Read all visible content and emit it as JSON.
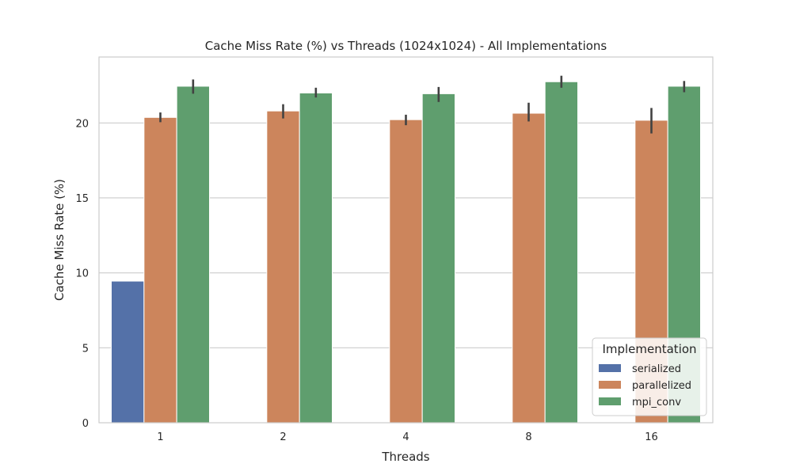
{
  "chart_data": {
    "type": "bar",
    "title": "Cache Miss Rate (%) vs Threads (1024x1024) - All Implementations",
    "xlabel": "Threads",
    "ylabel": "Cache Miss Rate (%)",
    "categories": [
      "1",
      "2",
      "4",
      "8",
      "16"
    ],
    "ylim": [
      0,
      24.4
    ],
    "yticks": [
      0,
      5,
      10,
      15,
      20
    ],
    "grid": true,
    "legend": {
      "title": "Implementation",
      "placement": "lower-right"
    },
    "series": [
      {
        "name": "serialized",
        "color": "#5471a8",
        "values": [
          9.45,
          null,
          null,
          null,
          null
        ],
        "ci": [
          null,
          null,
          null,
          null,
          null
        ]
      },
      {
        "name": "parallelized",
        "color": "#cc855c",
        "values": [
          20.37,
          20.8,
          20.22,
          20.65,
          20.18
        ],
        "ci": [
          [
            20.05,
            20.7
          ],
          [
            20.3,
            21.25
          ],
          [
            19.85,
            20.55
          ],
          [
            20.1,
            21.35
          ],
          [
            19.3,
            21.0
          ]
        ]
      },
      {
        "name": "mpi_conv",
        "color": "#5f9e6e",
        "values": [
          22.45,
          22.0,
          21.95,
          22.75,
          22.45
        ],
        "ci": [
          [
            21.95,
            22.9
          ],
          [
            21.7,
            22.35
          ],
          [
            21.4,
            22.4
          ],
          [
            22.35,
            23.15
          ],
          [
            22.05,
            22.8
          ]
        ]
      }
    ]
  }
}
